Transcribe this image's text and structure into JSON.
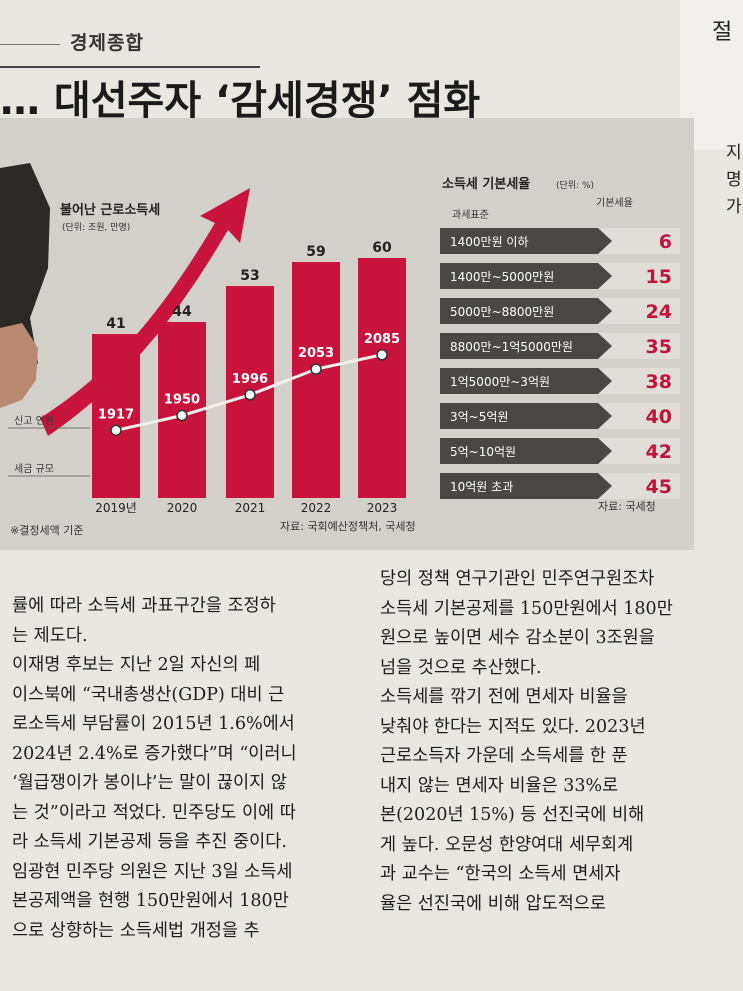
{
  "section": "경제종합",
  "headline": "… 대선주자 ‘감세경쟁’ 점화",
  "right_cut_top": "절",
  "right_cut_lines": [
    "지",
    "명",
    "가"
  ],
  "chart_data": [
    {
      "type": "bar",
      "title": "불어난 근로소득세",
      "subtitle": "(단위: 조원, 만명)",
      "categories": [
        "2019년",
        "2020",
        "2021",
        "2022",
        "2023"
      ],
      "series": [
        {
          "name": "세금 규모",
          "values": [
            41,
            44,
            53,
            59,
            60
          ]
        },
        {
          "name": "신고 인원",
          "values": [
            1917,
            1950,
            1996,
            2053,
            2085
          ]
        }
      ],
      "footnote": "※결정세액 기준",
      "source": "자료: 국회예산정책처, 국세청"
    },
    {
      "type": "table",
      "title": "소득세 기본세율",
      "subtitle": "(단위: %)",
      "col_left": "과세표준",
      "col_right": "기본세율",
      "rows": [
        {
          "bracket": "1400만원 이하",
          "rate": 6
        },
        {
          "bracket": "1400만~5000만원",
          "rate": 15
        },
        {
          "bracket": "5000만~8800만원",
          "rate": 24
        },
        {
          "bracket": "8800만~1억5000만원",
          "rate": 35
        },
        {
          "bracket": "1억5000만~3억원",
          "rate": 38
        },
        {
          "bracket": "3억~5억원",
          "rate": 40
        },
        {
          "bracket": "5억~10억원",
          "rate": 42
        },
        {
          "bracket": "10억원 초과",
          "rate": 45
        }
      ],
      "source": "자료: 국세청"
    }
  ],
  "body_left": [
    "률에 따라 소득세 과표구간을 조정하",
    "는 제도다.",
    "  이재명 후보는 지난 2일 자신의 페",
    "이스북에 “국내총생산(GDP) 대비 근",
    "로소득세 부담률이 2015년 1.6%에서",
    "2024년 2.4%로 증가했다”며 “이러니",
    "‘월급쟁이가 봉이냐’는 말이 끊이지 않",
    "는 것”이라고 적었다. 민주당도 이에 따",
    "라 소득세 기본공제 등을 추진 중이다.",
    "임광현 민주당 의원은 지난 3일 소득세",
    "본공제액을 현행 150만원에서 180만",
    "으로 상향하는 소득세법 개정을 추"
  ],
  "body_right": [
    "당의 정책 연구기관인 민주연구원조차",
    "소득세 기본공제를 150만원에서 180만",
    "원으로 높이면 세수 감소분이 3조원을",
    "넘을 것으로 추산했다.",
    "  소득세를 깎기 전에 면세자 비율을",
    "낮춰야 한다는 지적도 있다. 2023년",
    "근로소득자 가운데 소득세를 한 푼",
    "내지 않는 면세자 비율은 33%로",
    "본(2020년 15%) 등 선진국에 비해",
    "게 높다. 오문성 한양여대 세무회계",
    "과 교수는 “한국의 소득세 면세자",
    "율은 선진국에 비해 압도적으로"
  ],
  "colors": {
    "bar": "#c8143c",
    "band": "#4a4646",
    "accent": "#c0143a"
  }
}
